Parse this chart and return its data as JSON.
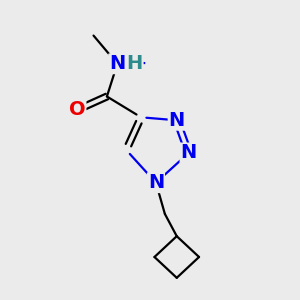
{
  "bg_color": "#ebebeb",
  "atom_colors": {
    "C": "#000000",
    "N": "#0000ee",
    "O": "#ee0000",
    "H": "#2e8b8b"
  },
  "bond_color": "#000000",
  "bond_width": 1.6,
  "font_size": 14
}
